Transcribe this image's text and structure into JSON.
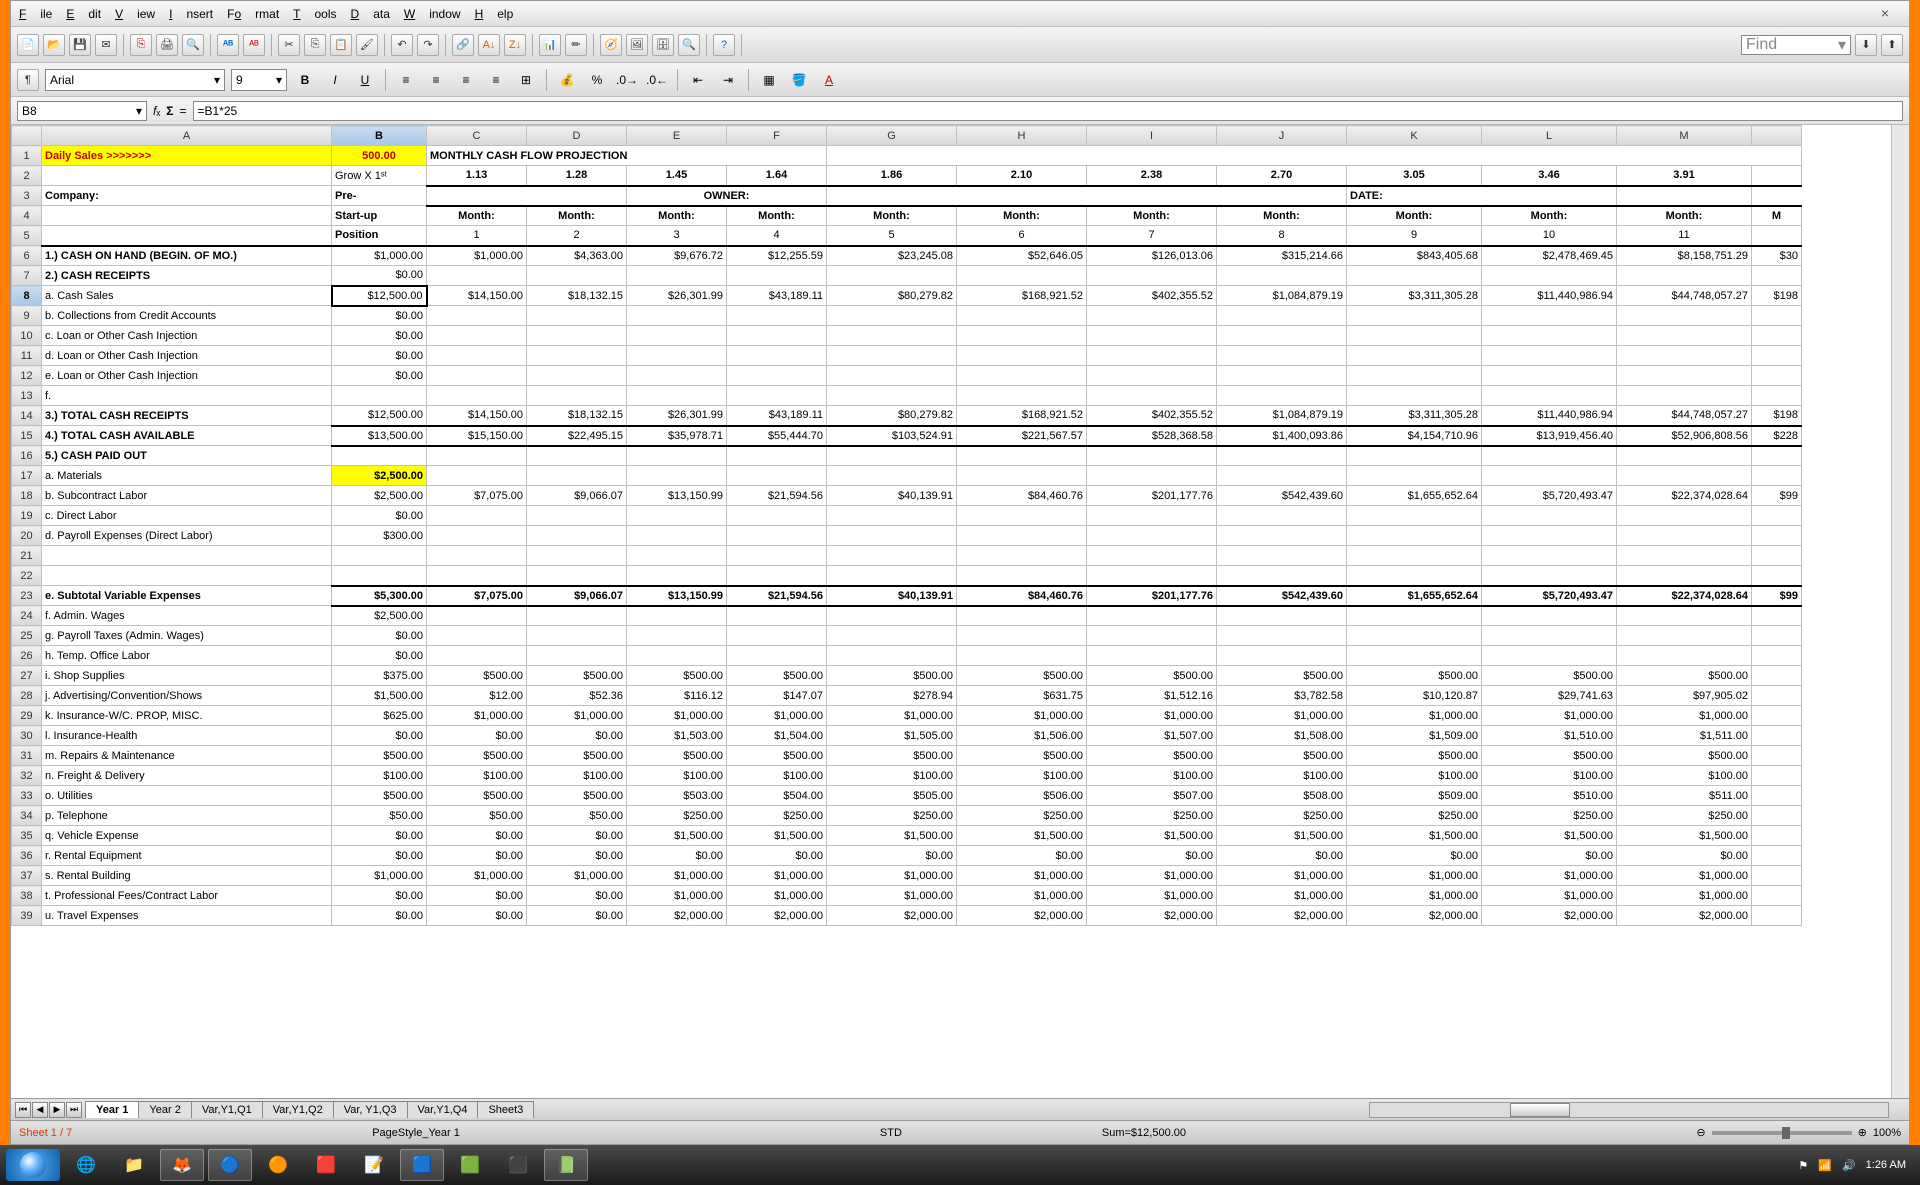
{
  "menu": {
    "file": "File",
    "edit": "Edit",
    "view": "View",
    "insert": "Insert",
    "format": "Format",
    "tools": "Tools",
    "data": "Data",
    "window": "Window",
    "help": "Help"
  },
  "font": {
    "name": "Arial",
    "size": "9"
  },
  "find": "Find",
  "cell": {
    "ref": "B8",
    "formula": "=B1*25"
  },
  "cols": [
    "A",
    "B",
    "C",
    "D",
    "E",
    "F",
    "G",
    "H",
    "I",
    "J",
    "K",
    "L",
    "M",
    ""
  ],
  "r1": {
    "a": "Daily Sales >>>>>>>",
    "b": "500.00",
    "title": "MONTHLY CASH FLOW PROJECTION"
  },
  "r2": {
    "b": "Grow X 1ˢᵗ",
    "v": [
      "1.13",
      "1.28",
      "1.45",
      "1.64",
      "1.86",
      "2.10",
      "2.38",
      "2.70",
      "3.05",
      "3.46",
      "3.91"
    ]
  },
  "r3": {
    "a": "Company:",
    "b": "Pre-",
    "owner": "OWNER:",
    "date": "DATE:"
  },
  "r4": {
    "b": "Start-up",
    "m": "Month:"
  },
  "r5": {
    "b": "Position",
    "v": [
      "1",
      "2",
      "3",
      "4",
      "5",
      "6",
      "7",
      "8",
      "9",
      "10",
      "11"
    ]
  },
  "r6": {
    "a": "1.) CASH ON HAND (BEGIN. OF MO.)",
    "b": "$1,000.00",
    "v": [
      "$1,000.00",
      "$4,363.00",
      "$9,676.72",
      "$12,255.59",
      "$23,245.08",
      "$52,646.05",
      "$126,013.06",
      "$315,214.66",
      "$843,405.68",
      "$2,478,469.45",
      "$8,158,751.29",
      "$30"
    ]
  },
  "r7": {
    "a": "2.) CASH RECEIPTS",
    "b": "$0.00"
  },
  "r8": {
    "a": "   a. Cash Sales",
    "b": "$12,500.00",
    "v": [
      "$14,150.00",
      "$18,132.15",
      "$26,301.99",
      "$43,189.11",
      "$80,279.82",
      "$168,921.52",
      "$402,355.52",
      "$1,084,879.19",
      "$3,311,305.28",
      "$11,440,986.94",
      "$44,748,057.27",
      "$198"
    ]
  },
  "r9": {
    "a": "   b. Collections from Credit Accounts",
    "b": "$0.00"
  },
  "r10": {
    "a": "   c. Loan or Other Cash Injection",
    "b": "$0.00"
  },
  "r11": {
    "a": "   d. Loan or Other Cash Injection",
    "b": "$0.00"
  },
  "r12": {
    "a": "   e. Loan or Other Cash Injection",
    "b": "$0.00"
  },
  "r13": {
    "a": "   f."
  },
  "r14": {
    "a": "3.) TOTAL CASH RECEIPTS",
    "b": "$12,500.00",
    "v": [
      "$14,150.00",
      "$18,132.15",
      "$26,301.99",
      "$43,189.11",
      "$80,279.82",
      "$168,921.52",
      "$402,355.52",
      "$1,084,879.19",
      "$3,311,305.28",
      "$11,440,986.94",
      "$44,748,057.27",
      "$198"
    ]
  },
  "r15": {
    "a": "4.) TOTAL CASH AVAILABLE",
    "b": "$13,500.00",
    "v": [
      "$15,150.00",
      "$22,495.15",
      "$35,978.71",
      "$55,444.70",
      "$103,524.91",
      "$221,567.57",
      "$528,368.58",
      "$1,400,093.86",
      "$4,154,710.96",
      "$13,919,456.40",
      "$52,906,808.56",
      "$228"
    ]
  },
  "r16": {
    "a": "5.) CASH PAID OUT"
  },
  "r17": {
    "a": "   a. Materials",
    "b": "$2,500.00"
  },
  "r18": {
    "a": "   b. Subcontract Labor",
    "b": "$2,500.00",
    "v": [
      "$7,075.00",
      "$9,066.07",
      "$13,150.99",
      "$21,594.56",
      "$40,139.91",
      "$84,460.76",
      "$201,177.76",
      "$542,439.60",
      "$1,655,652.64",
      "$5,720,493.47",
      "$22,374,028.64",
      "$99"
    ]
  },
  "r19": {
    "a": "   c. Direct Labor",
    "b": "$0.00"
  },
  "r20": {
    "a": "   d. Payroll Expenses (Direct Labor)",
    "b": "$300.00"
  },
  "r23": {
    "a": "   e. Subtotal Variable Expenses",
    "b": "$5,300.00",
    "v": [
      "$7,075.00",
      "$9,066.07",
      "$13,150.99",
      "$21,594.56",
      "$40,139.91",
      "$84,460.76",
      "$201,177.76",
      "$542,439.60",
      "$1,655,652.64",
      "$5,720,493.47",
      "$22,374,028.64",
      "$99"
    ]
  },
  "r24": {
    "a": "   f. Admin. Wages",
    "b": "$2,500.00"
  },
  "r25": {
    "a": "   g. Payroll Taxes (Admin. Wages)",
    "b": "$0.00"
  },
  "r26": {
    "a": "   h. Temp. Office Labor",
    "b": "$0.00"
  },
  "r27": {
    "a": "   i. Shop Supplies",
    "b": "$375.00",
    "v": [
      "$500.00",
      "$500.00",
      "$500.00",
      "$500.00",
      "$500.00",
      "$500.00",
      "$500.00",
      "$500.00",
      "$500.00",
      "$500.00",
      "$500.00",
      ""
    ]
  },
  "r28": {
    "a": "   j. Advertising/Convention/Shows",
    "b": "$1,500.00",
    "v": [
      "$12.00",
      "$52.36",
      "$116.12",
      "$147.07",
      "$278.94",
      "$631.75",
      "$1,512.16",
      "$3,782.58",
      "$10,120.87",
      "$29,741.63",
      "$97,905.02",
      ""
    ]
  },
  "r29": {
    "a": "   k. Insurance-W/C. PROP, MISC.",
    "b": "$625.00",
    "v": [
      "$1,000.00",
      "$1,000.00",
      "$1,000.00",
      "$1,000.00",
      "$1,000.00",
      "$1,000.00",
      "$1,000.00",
      "$1,000.00",
      "$1,000.00",
      "$1,000.00",
      "$1,000.00",
      ""
    ]
  },
  "r30": {
    "a": "   l. Insurance-Health",
    "b": "$0.00",
    "v": [
      "$0.00",
      "$0.00",
      "$1,503.00",
      "$1,504.00",
      "$1,505.00",
      "$1,506.00",
      "$1,507.00",
      "$1,508.00",
      "$1,509.00",
      "$1,510.00",
      "$1,511.00",
      ""
    ]
  },
  "r31": {
    "a": "   m. Repairs & Maintenance",
    "b": "$500.00",
    "v": [
      "$500.00",
      "$500.00",
      "$500.00",
      "$500.00",
      "$500.00",
      "$500.00",
      "$500.00",
      "$500.00",
      "$500.00",
      "$500.00",
      "$500.00",
      ""
    ]
  },
  "r32": {
    "a": "   n. Freight & Delivery",
    "b": "$100.00",
    "v": [
      "$100.00",
      "$100.00",
      "$100.00",
      "$100.00",
      "$100.00",
      "$100.00",
      "$100.00",
      "$100.00",
      "$100.00",
      "$100.00",
      "$100.00",
      ""
    ]
  },
  "r33": {
    "a": "   o. Utilities",
    "b": "$500.00",
    "v": [
      "$500.00",
      "$500.00",
      "$503.00",
      "$504.00",
      "$505.00",
      "$506.00",
      "$507.00",
      "$508.00",
      "$509.00",
      "$510.00",
      "$511.00",
      ""
    ]
  },
  "r34": {
    "a": "   p. Telephone",
    "b": "$50.00",
    "v": [
      "$50.00",
      "$50.00",
      "$250.00",
      "$250.00",
      "$250.00",
      "$250.00",
      "$250.00",
      "$250.00",
      "$250.00",
      "$250.00",
      "$250.00",
      ""
    ]
  },
  "r35": {
    "a": "   q. Vehicle Expense",
    "b": "$0.00",
    "v": [
      "$0.00",
      "$0.00",
      "$1,500.00",
      "$1,500.00",
      "$1,500.00",
      "$1,500.00",
      "$1,500.00",
      "$1,500.00",
      "$1,500.00",
      "$1,500.00",
      "$1,500.00",
      ""
    ]
  },
  "r36": {
    "a": "   r. Rental Equipment",
    "b": "$0.00",
    "v": [
      "$0.00",
      "$0.00",
      "$0.00",
      "$0.00",
      "$0.00",
      "$0.00",
      "$0.00",
      "$0.00",
      "$0.00",
      "$0.00",
      "$0.00",
      ""
    ]
  },
  "r37": {
    "a": "   s. Rental Building",
    "b": "$1,000.00",
    "v": [
      "$1,000.00",
      "$1,000.00",
      "$1,000.00",
      "$1,000.00",
      "$1,000.00",
      "$1,000.00",
      "$1,000.00",
      "$1,000.00",
      "$1,000.00",
      "$1,000.00",
      "$1,000.00",
      ""
    ]
  },
  "r38": {
    "a": "   t. Professional Fees/Contract Labor",
    "b": "$0.00",
    "v": [
      "$0.00",
      "$0.00",
      "$1,000.00",
      "$1,000.00",
      "$1,000.00",
      "$1,000.00",
      "$1,000.00",
      "$1,000.00",
      "$1,000.00",
      "$1,000.00",
      "$1,000.00",
      ""
    ]
  },
  "r39": {
    "a": "   u. Travel Expenses",
    "b": "$0.00",
    "v": [
      "$0.00",
      "$0.00",
      "$2,000.00",
      "$2,000.00",
      "$2,000.00",
      "$2,000.00",
      "$2,000.00",
      "$2,000.00",
      "$2,000.00",
      "$2,000.00",
      "$2,000.00",
      ""
    ]
  },
  "tabs": [
    "Year 1",
    "Year 2",
    "Var,Y1,Q1",
    "Var,Y1,Q2",
    "Var, Y1,Q3",
    "Var,Y1,Q4",
    "Sheet3"
  ],
  "status": {
    "sheet": "Sheet 1 / 7",
    "style": "PageStyle_Year 1",
    "mode": "STD",
    "sum": "Sum=$12,500.00",
    "zoom": "100%"
  },
  "tray": {
    "time": "1:26 AM"
  }
}
